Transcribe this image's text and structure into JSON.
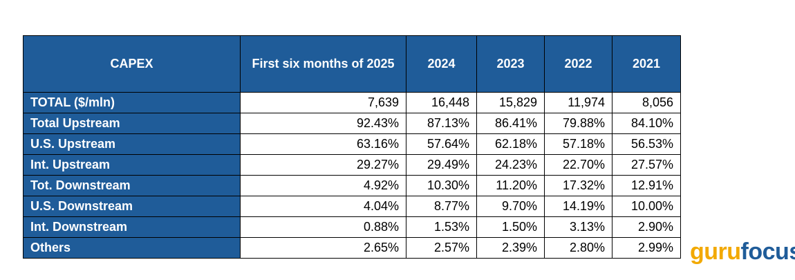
{
  "table": {
    "header": [
      "CAPEX",
      "First six months of 2025",
      "2024",
      "2023",
      "2022",
      "2021"
    ],
    "rows": [
      [
        "TOTAL ($/mln)",
        "7,639",
        "16,448",
        "15,829",
        "11,974",
        "8,056"
      ],
      [
        "Total Upstream",
        "92.43%",
        "87.13%",
        "86.41%",
        "79.88%",
        "84.10%"
      ],
      [
        "U.S. Upstream",
        "63.16%",
        "57.64%",
        "62.18%",
        "57.18%",
        "56.53%"
      ],
      [
        "Int. Upstream",
        "29.27%",
        "29.49%",
        "24.23%",
        "22.70%",
        "27.57%"
      ],
      [
        "Tot. Downstream",
        "4.92%",
        "10.30%",
        "11.20%",
        "17.32%",
        "12.91%"
      ],
      [
        "U.S. Downstream",
        "4.04%",
        "8.77%",
        "9.70%",
        "14.19%",
        "10.00%"
      ],
      [
        "Int. Downstream",
        "0.88%",
        "1.53%",
        "1.50%",
        "3.13%",
        "2.90%"
      ],
      [
        "Others",
        "2.65%",
        "2.57%",
        "2.39%",
        "2.80%",
        "2.99%"
      ]
    ]
  },
  "logo": {
    "first": "guru",
    "second": "focus"
  }
}
